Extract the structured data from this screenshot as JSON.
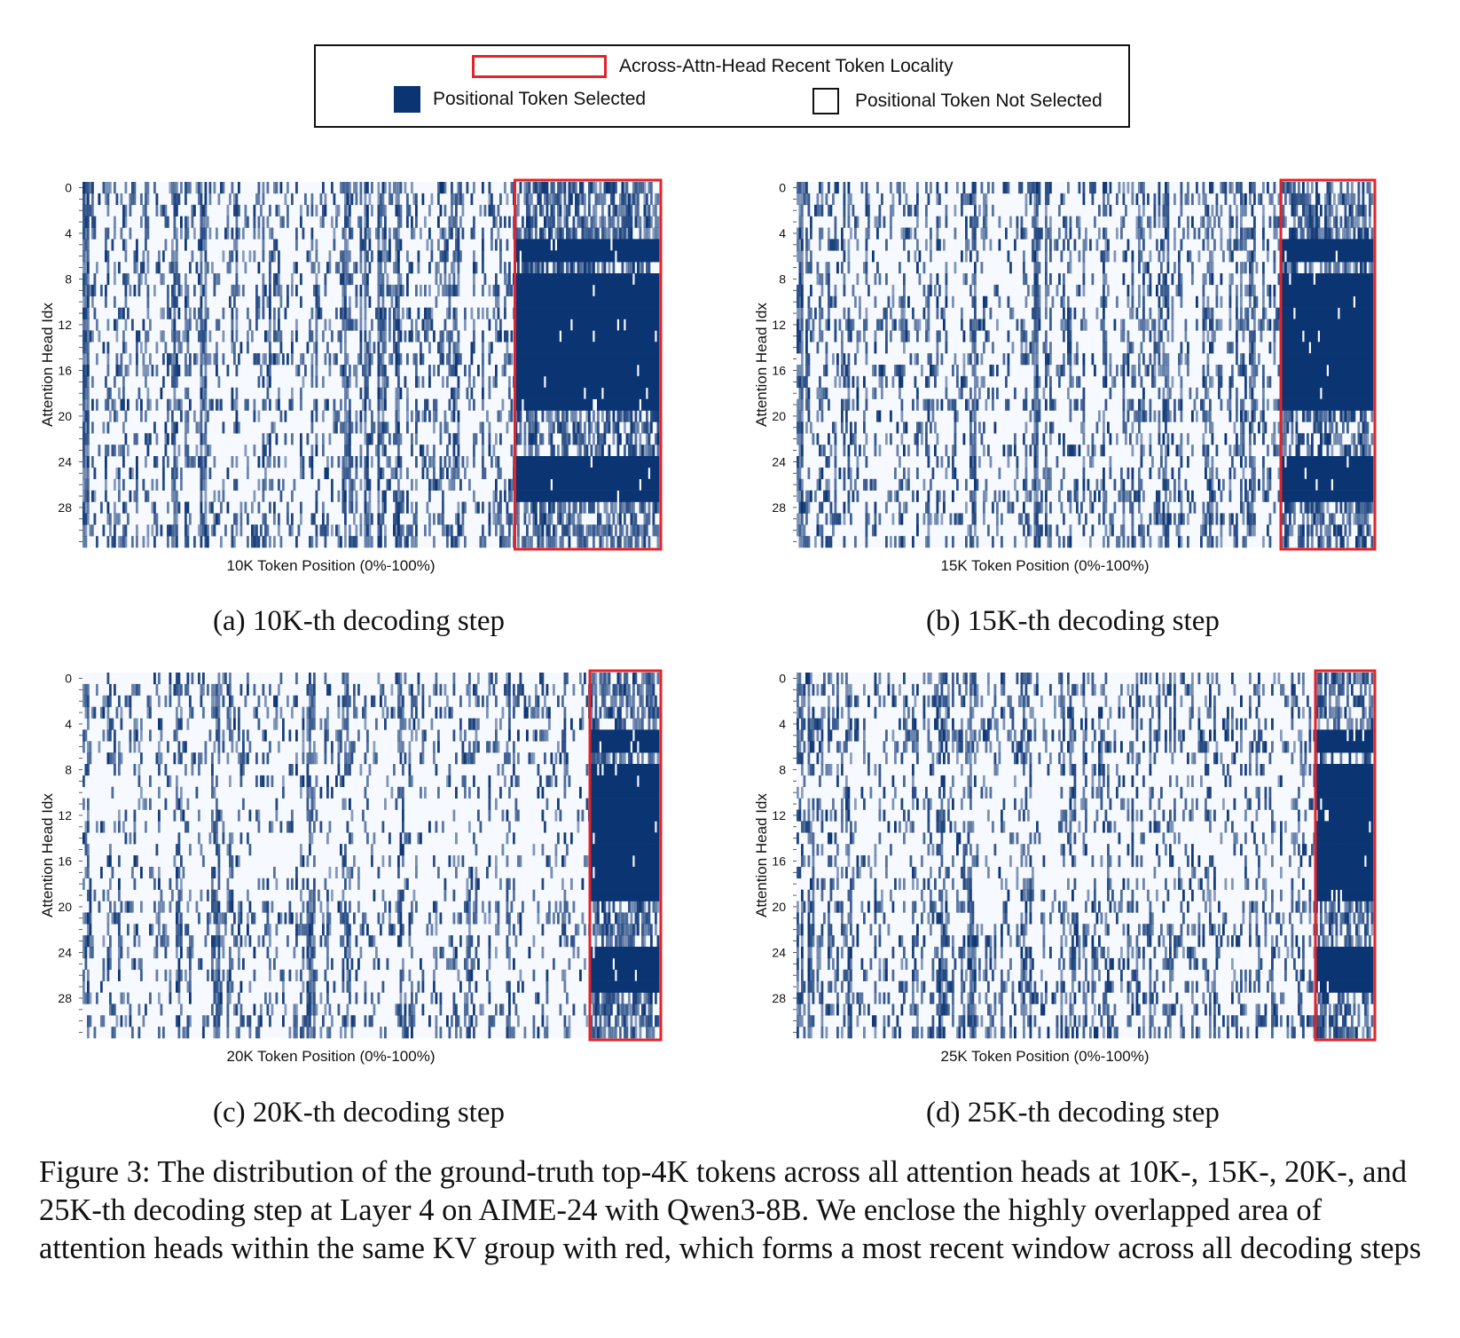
{
  "legend": {
    "recent_locality_label": "Across-Attn-Head Recent Token Locality",
    "selected_label": "Positional Token Selected",
    "not_selected_label": "Positional Token Not Selected"
  },
  "colors": {
    "selected": "#0b3473",
    "not_selected": "#f6f9ff",
    "highlight_box": "#e1242a"
  },
  "chart_data": [
    {
      "type": "heatmap",
      "id": "a",
      "caption": "(a) 10K-th decoding step",
      "xlabel": "10K Token Position (0%-100%)",
      "ylabel": "Attention Head Idx",
      "y_ticks": [
        0,
        4,
        8,
        12,
        16,
        20,
        24,
        28
      ],
      "num_heads": 32,
      "x_range": [
        0,
        100
      ],
      "recent_window_start_pct": 75,
      "dense_head_blocks_in_window": [
        [
          5,
          6
        ],
        [
          8,
          19
        ],
        [
          24,
          27
        ]
      ]
    },
    {
      "type": "heatmap",
      "id": "b",
      "caption": "(b) 15K-th decoding step",
      "xlabel": "15K Token Position (0%-100%)",
      "ylabel": "Attention Head Idx",
      "y_ticks": [
        0,
        4,
        8,
        12,
        16,
        20,
        24,
        28
      ],
      "num_heads": 32,
      "x_range": [
        0,
        100
      ],
      "recent_window_start_pct": 84,
      "dense_head_blocks_in_window": [
        [
          5,
          6
        ],
        [
          8,
          19
        ],
        [
          24,
          27
        ]
      ]
    },
    {
      "type": "heatmap",
      "id": "c",
      "caption": "(c) 20K-th decoding step",
      "xlabel": "20K Token Position (0%-100%)",
      "ylabel": "Attention Head Idx",
      "y_ticks": [
        0,
        4,
        8,
        12,
        16,
        20,
        24,
        28
      ],
      "num_heads": 32,
      "x_range": [
        0,
        100
      ],
      "recent_window_start_pct": 88,
      "dense_head_blocks_in_window": [
        [
          5,
          6
        ],
        [
          8,
          19
        ],
        [
          24,
          27
        ]
      ]
    },
    {
      "type": "heatmap",
      "id": "d",
      "caption": "(d) 25K-th decoding step",
      "xlabel": "25K Token Position (0%-100%)",
      "ylabel": "Attention Head Idx",
      "y_ticks": [
        0,
        4,
        8,
        12,
        16,
        20,
        24,
        28
      ],
      "num_heads": 32,
      "x_range": [
        0,
        100
      ],
      "recent_window_start_pct": 90,
      "dense_head_blocks_in_window": [
        [
          5,
          6
        ],
        [
          8,
          19
        ],
        [
          24,
          27
        ]
      ]
    }
  ],
  "figure_caption": "Figure 3: The distribution of the ground-truth top-4K tokens across all attention heads at 10K-, 15K-, 20K-, and 25K-th decoding step at Layer 4 on AIME-24 with Qwen3-8B. We enclose the highly overlapped area of attention heads within the same KV group with red, which forms a most recent window across all decoding steps"
}
